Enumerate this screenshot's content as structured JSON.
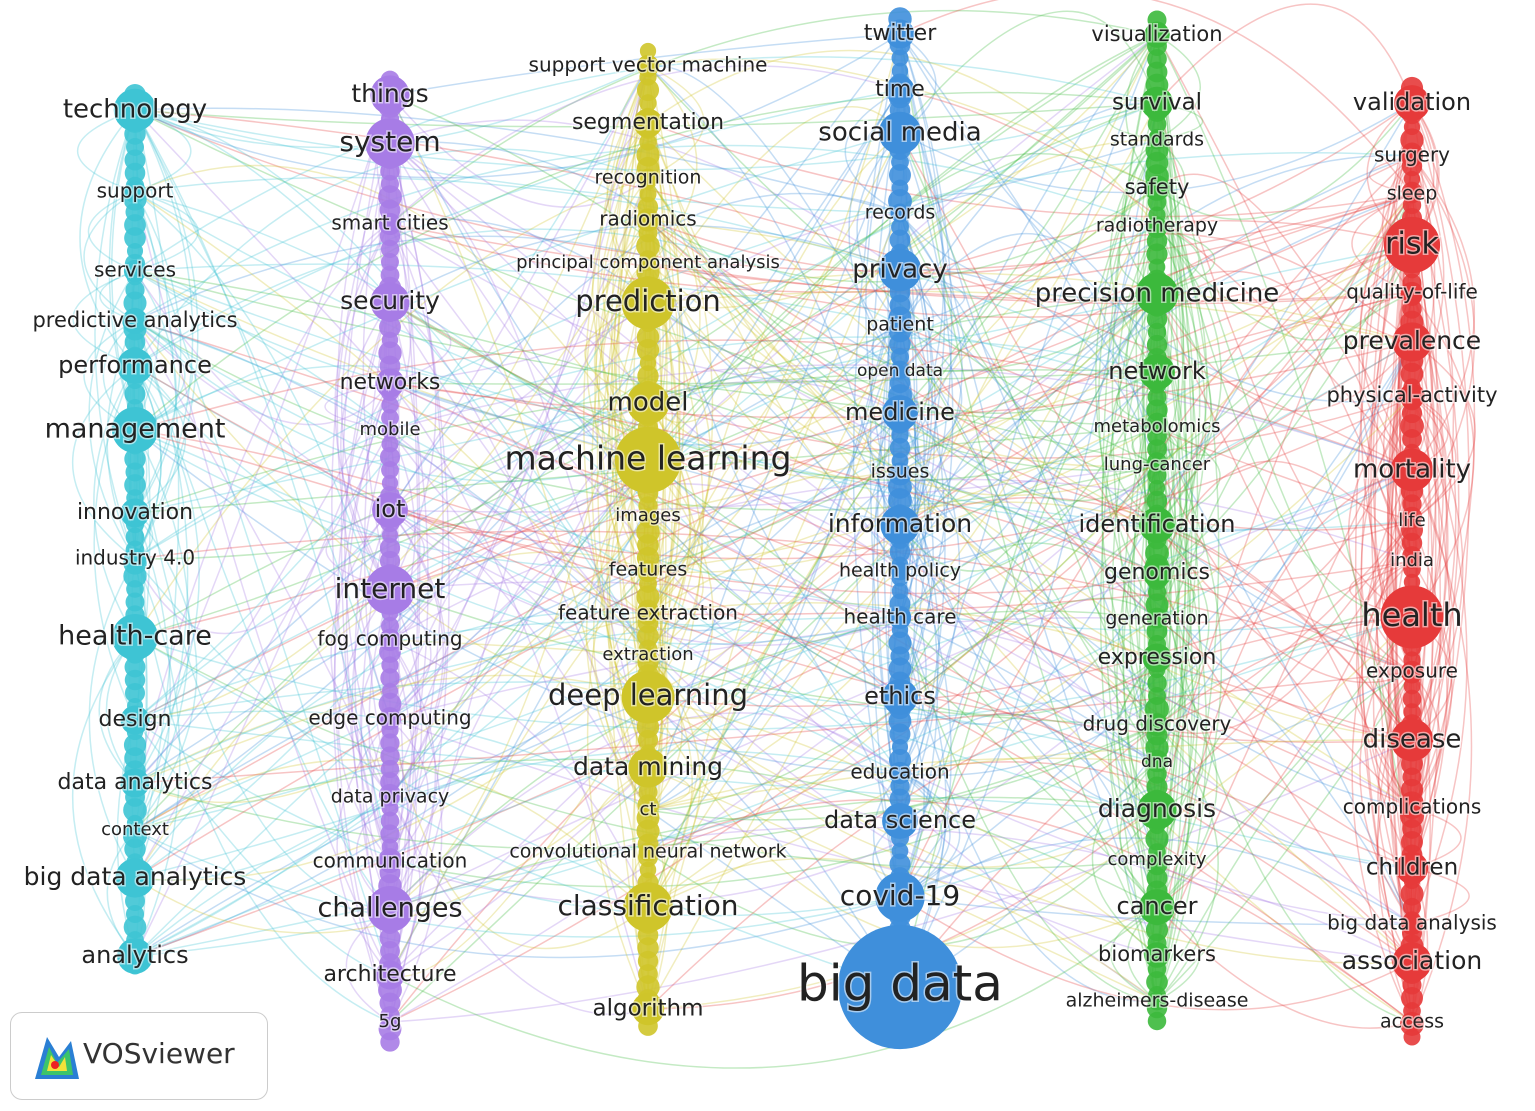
{
  "clusters": [
    {
      "nodes": [
        "technology",
        "support",
        "services",
        "predictive analytics",
        "performance",
        "management",
        "innovation",
        "industry 4.0",
        "health-care",
        "design",
        "data analytics",
        "context",
        "big data analytics",
        "analytics"
      ]
    },
    {
      "nodes": [
        "things",
        "system",
        "smart cities",
        "security",
        "networks",
        "mobile",
        "iot",
        "internet",
        "fog computing",
        "edge computing",
        "data privacy",
        "communication",
        "challenges",
        "architecture",
        "5g"
      ]
    },
    {
      "nodes": [
        "support vector machine",
        "segmentation",
        "recognition",
        "radiomics",
        "principal component analysis",
        "prediction",
        "model",
        "machine learning",
        "images",
        "features",
        "feature extraction",
        "extraction",
        "deep learning",
        "data mining",
        "ct",
        "convolutional neural network",
        "classification",
        "algorithm"
      ]
    },
    {
      "nodes": [
        "twitter",
        "time",
        "social media",
        "records",
        "privacy",
        "patient",
        "open data",
        "medicine",
        "issues",
        "information",
        "health policy",
        "health care",
        "ethics",
        "education",
        "data science",
        "covid-19",
        "big data"
      ]
    },
    {
      "nodes": [
        "visualization",
        "survival",
        "standards",
        "safety",
        "radiotherapy",
        "precision medicine",
        "network",
        "metabolomics",
        "lung-cancer",
        "identification",
        "genomics",
        "generation",
        "expression",
        "drug discovery",
        "dna",
        "diagnosis",
        "complexity",
        "cancer",
        "biomarkers",
        "alzheimers-disease"
      ]
    },
    {
      "nodes": [
        "validation",
        "surgery",
        "sleep",
        "risk",
        "quality-of-life",
        "prevalence",
        "physical-activity",
        "mortality",
        "life",
        "india",
        "health",
        "exposure",
        "disease",
        "complications",
        "children",
        "big data analysis",
        "association",
        "access"
      ]
    }
  ],
  "logo": {
    "text": "VOSviewer"
  }
}
